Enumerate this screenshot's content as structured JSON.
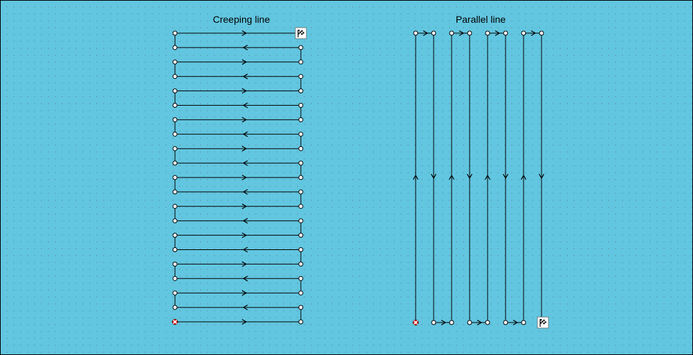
{
  "diagrams": {
    "creeping": {
      "title": "Creeping line",
      "legs": 21,
      "start_marker": "lifebuoy-icon",
      "end_marker": "checkered-flag-icon"
    },
    "parallel": {
      "title": "Parallel line",
      "tracks": 8,
      "start_marker": "lifebuoy-icon",
      "end_marker": "checkered-flag-icon"
    }
  },
  "colors": {
    "background": "#62c6e0",
    "line": "#000000",
    "waypoint_fill": "#ffffff",
    "lifebuoy": "#e02020"
  }
}
